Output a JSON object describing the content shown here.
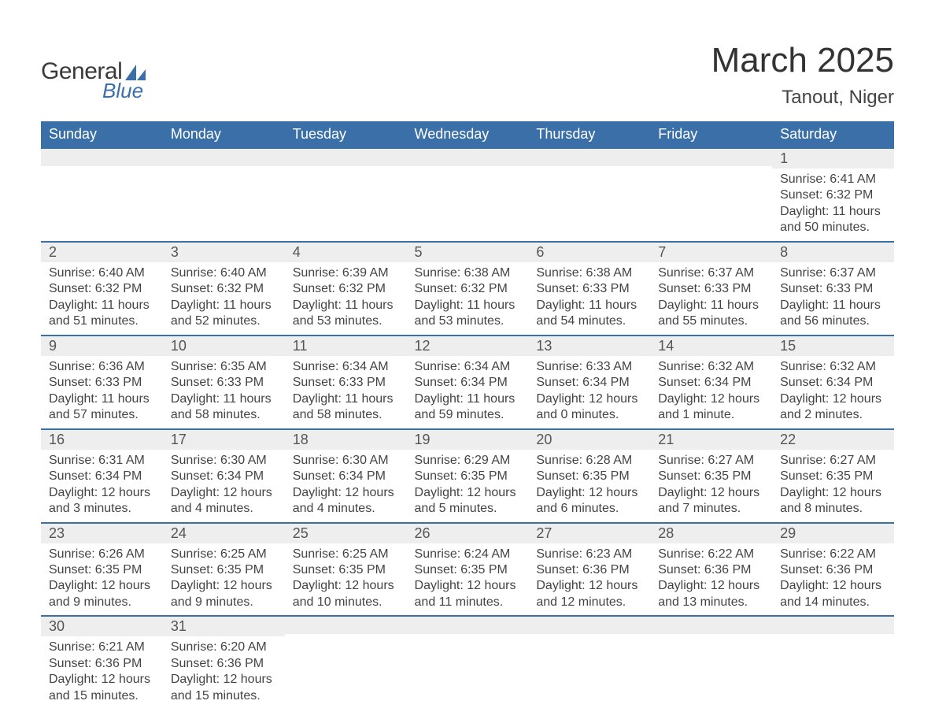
{
  "brand": {
    "name1": "General",
    "name2": "Blue",
    "accent": "#3b6fa8"
  },
  "title": "March 2025",
  "location": "Tanout, Niger",
  "colors": {
    "header_bg": "#3b6fa8",
    "header_text": "#ffffff",
    "band_bg": "#eeeeee",
    "band_border": "#3b6fa8",
    "text": "#444444",
    "page_bg": "#ffffff"
  },
  "typography": {
    "title_fontsize": 44,
    "location_fontsize": 24,
    "dayhead_fontsize": 18,
    "daynum_fontsize": 18,
    "body_fontsize": 16
  },
  "day_headers": [
    "Sunday",
    "Monday",
    "Tuesday",
    "Wednesday",
    "Thursday",
    "Friday",
    "Saturday"
  ],
  "weeks": [
    [
      {
        "n": "",
        "sunrise": "",
        "sunset": "",
        "daylight": ""
      },
      {
        "n": "",
        "sunrise": "",
        "sunset": "",
        "daylight": ""
      },
      {
        "n": "",
        "sunrise": "",
        "sunset": "",
        "daylight": ""
      },
      {
        "n": "",
        "sunrise": "",
        "sunset": "",
        "daylight": ""
      },
      {
        "n": "",
        "sunrise": "",
        "sunset": "",
        "daylight": ""
      },
      {
        "n": "",
        "sunrise": "",
        "sunset": "",
        "daylight": ""
      },
      {
        "n": "1",
        "sunrise": "Sunrise: 6:41 AM",
        "sunset": "Sunset: 6:32 PM",
        "daylight": "Daylight: 11 hours and 50 minutes."
      }
    ],
    [
      {
        "n": "2",
        "sunrise": "Sunrise: 6:40 AM",
        "sunset": "Sunset: 6:32 PM",
        "daylight": "Daylight: 11 hours and 51 minutes."
      },
      {
        "n": "3",
        "sunrise": "Sunrise: 6:40 AM",
        "sunset": "Sunset: 6:32 PM",
        "daylight": "Daylight: 11 hours and 52 minutes."
      },
      {
        "n": "4",
        "sunrise": "Sunrise: 6:39 AM",
        "sunset": "Sunset: 6:32 PM",
        "daylight": "Daylight: 11 hours and 53 minutes."
      },
      {
        "n": "5",
        "sunrise": "Sunrise: 6:38 AM",
        "sunset": "Sunset: 6:32 PM",
        "daylight": "Daylight: 11 hours and 53 minutes."
      },
      {
        "n": "6",
        "sunrise": "Sunrise: 6:38 AM",
        "sunset": "Sunset: 6:33 PM",
        "daylight": "Daylight: 11 hours and 54 minutes."
      },
      {
        "n": "7",
        "sunrise": "Sunrise: 6:37 AM",
        "sunset": "Sunset: 6:33 PM",
        "daylight": "Daylight: 11 hours and 55 minutes."
      },
      {
        "n": "8",
        "sunrise": "Sunrise: 6:37 AM",
        "sunset": "Sunset: 6:33 PM",
        "daylight": "Daylight: 11 hours and 56 minutes."
      }
    ],
    [
      {
        "n": "9",
        "sunrise": "Sunrise: 6:36 AM",
        "sunset": "Sunset: 6:33 PM",
        "daylight": "Daylight: 11 hours and 57 minutes."
      },
      {
        "n": "10",
        "sunrise": "Sunrise: 6:35 AM",
        "sunset": "Sunset: 6:33 PM",
        "daylight": "Daylight: 11 hours and 58 minutes."
      },
      {
        "n": "11",
        "sunrise": "Sunrise: 6:34 AM",
        "sunset": "Sunset: 6:33 PM",
        "daylight": "Daylight: 11 hours and 58 minutes."
      },
      {
        "n": "12",
        "sunrise": "Sunrise: 6:34 AM",
        "sunset": "Sunset: 6:34 PM",
        "daylight": "Daylight: 11 hours and 59 minutes."
      },
      {
        "n": "13",
        "sunrise": "Sunrise: 6:33 AM",
        "sunset": "Sunset: 6:34 PM",
        "daylight": "Daylight: 12 hours and 0 minutes."
      },
      {
        "n": "14",
        "sunrise": "Sunrise: 6:32 AM",
        "sunset": "Sunset: 6:34 PM",
        "daylight": "Daylight: 12 hours and 1 minute."
      },
      {
        "n": "15",
        "sunrise": "Sunrise: 6:32 AM",
        "sunset": "Sunset: 6:34 PM",
        "daylight": "Daylight: 12 hours and 2 minutes."
      }
    ],
    [
      {
        "n": "16",
        "sunrise": "Sunrise: 6:31 AM",
        "sunset": "Sunset: 6:34 PM",
        "daylight": "Daylight: 12 hours and 3 minutes."
      },
      {
        "n": "17",
        "sunrise": "Sunrise: 6:30 AM",
        "sunset": "Sunset: 6:34 PM",
        "daylight": "Daylight: 12 hours and 4 minutes."
      },
      {
        "n": "18",
        "sunrise": "Sunrise: 6:30 AM",
        "sunset": "Sunset: 6:34 PM",
        "daylight": "Daylight: 12 hours and 4 minutes."
      },
      {
        "n": "19",
        "sunrise": "Sunrise: 6:29 AM",
        "sunset": "Sunset: 6:35 PM",
        "daylight": "Daylight: 12 hours and 5 minutes."
      },
      {
        "n": "20",
        "sunrise": "Sunrise: 6:28 AM",
        "sunset": "Sunset: 6:35 PM",
        "daylight": "Daylight: 12 hours and 6 minutes."
      },
      {
        "n": "21",
        "sunrise": "Sunrise: 6:27 AM",
        "sunset": "Sunset: 6:35 PM",
        "daylight": "Daylight: 12 hours and 7 minutes."
      },
      {
        "n": "22",
        "sunrise": "Sunrise: 6:27 AM",
        "sunset": "Sunset: 6:35 PM",
        "daylight": "Daylight: 12 hours and 8 minutes."
      }
    ],
    [
      {
        "n": "23",
        "sunrise": "Sunrise: 6:26 AM",
        "sunset": "Sunset: 6:35 PM",
        "daylight": "Daylight: 12 hours and 9 minutes."
      },
      {
        "n": "24",
        "sunrise": "Sunrise: 6:25 AM",
        "sunset": "Sunset: 6:35 PM",
        "daylight": "Daylight: 12 hours and 9 minutes."
      },
      {
        "n": "25",
        "sunrise": "Sunrise: 6:25 AM",
        "sunset": "Sunset: 6:35 PM",
        "daylight": "Daylight: 12 hours and 10 minutes."
      },
      {
        "n": "26",
        "sunrise": "Sunrise: 6:24 AM",
        "sunset": "Sunset: 6:35 PM",
        "daylight": "Daylight: 12 hours and 11 minutes."
      },
      {
        "n": "27",
        "sunrise": "Sunrise: 6:23 AM",
        "sunset": "Sunset: 6:36 PM",
        "daylight": "Daylight: 12 hours and 12 minutes."
      },
      {
        "n": "28",
        "sunrise": "Sunrise: 6:22 AM",
        "sunset": "Sunset: 6:36 PM",
        "daylight": "Daylight: 12 hours and 13 minutes."
      },
      {
        "n": "29",
        "sunrise": "Sunrise: 6:22 AM",
        "sunset": "Sunset: 6:36 PM",
        "daylight": "Daylight: 12 hours and 14 minutes."
      }
    ],
    [
      {
        "n": "30",
        "sunrise": "Sunrise: 6:21 AM",
        "sunset": "Sunset: 6:36 PM",
        "daylight": "Daylight: 12 hours and 15 minutes."
      },
      {
        "n": "31",
        "sunrise": "Sunrise: 6:20 AM",
        "sunset": "Sunset: 6:36 PM",
        "daylight": "Daylight: 12 hours and 15 minutes."
      },
      {
        "n": "",
        "sunrise": "",
        "sunset": "",
        "daylight": ""
      },
      {
        "n": "",
        "sunrise": "",
        "sunset": "",
        "daylight": ""
      },
      {
        "n": "",
        "sunrise": "",
        "sunset": "",
        "daylight": ""
      },
      {
        "n": "",
        "sunrise": "",
        "sunset": "",
        "daylight": ""
      },
      {
        "n": "",
        "sunrise": "",
        "sunset": "",
        "daylight": ""
      }
    ]
  ]
}
